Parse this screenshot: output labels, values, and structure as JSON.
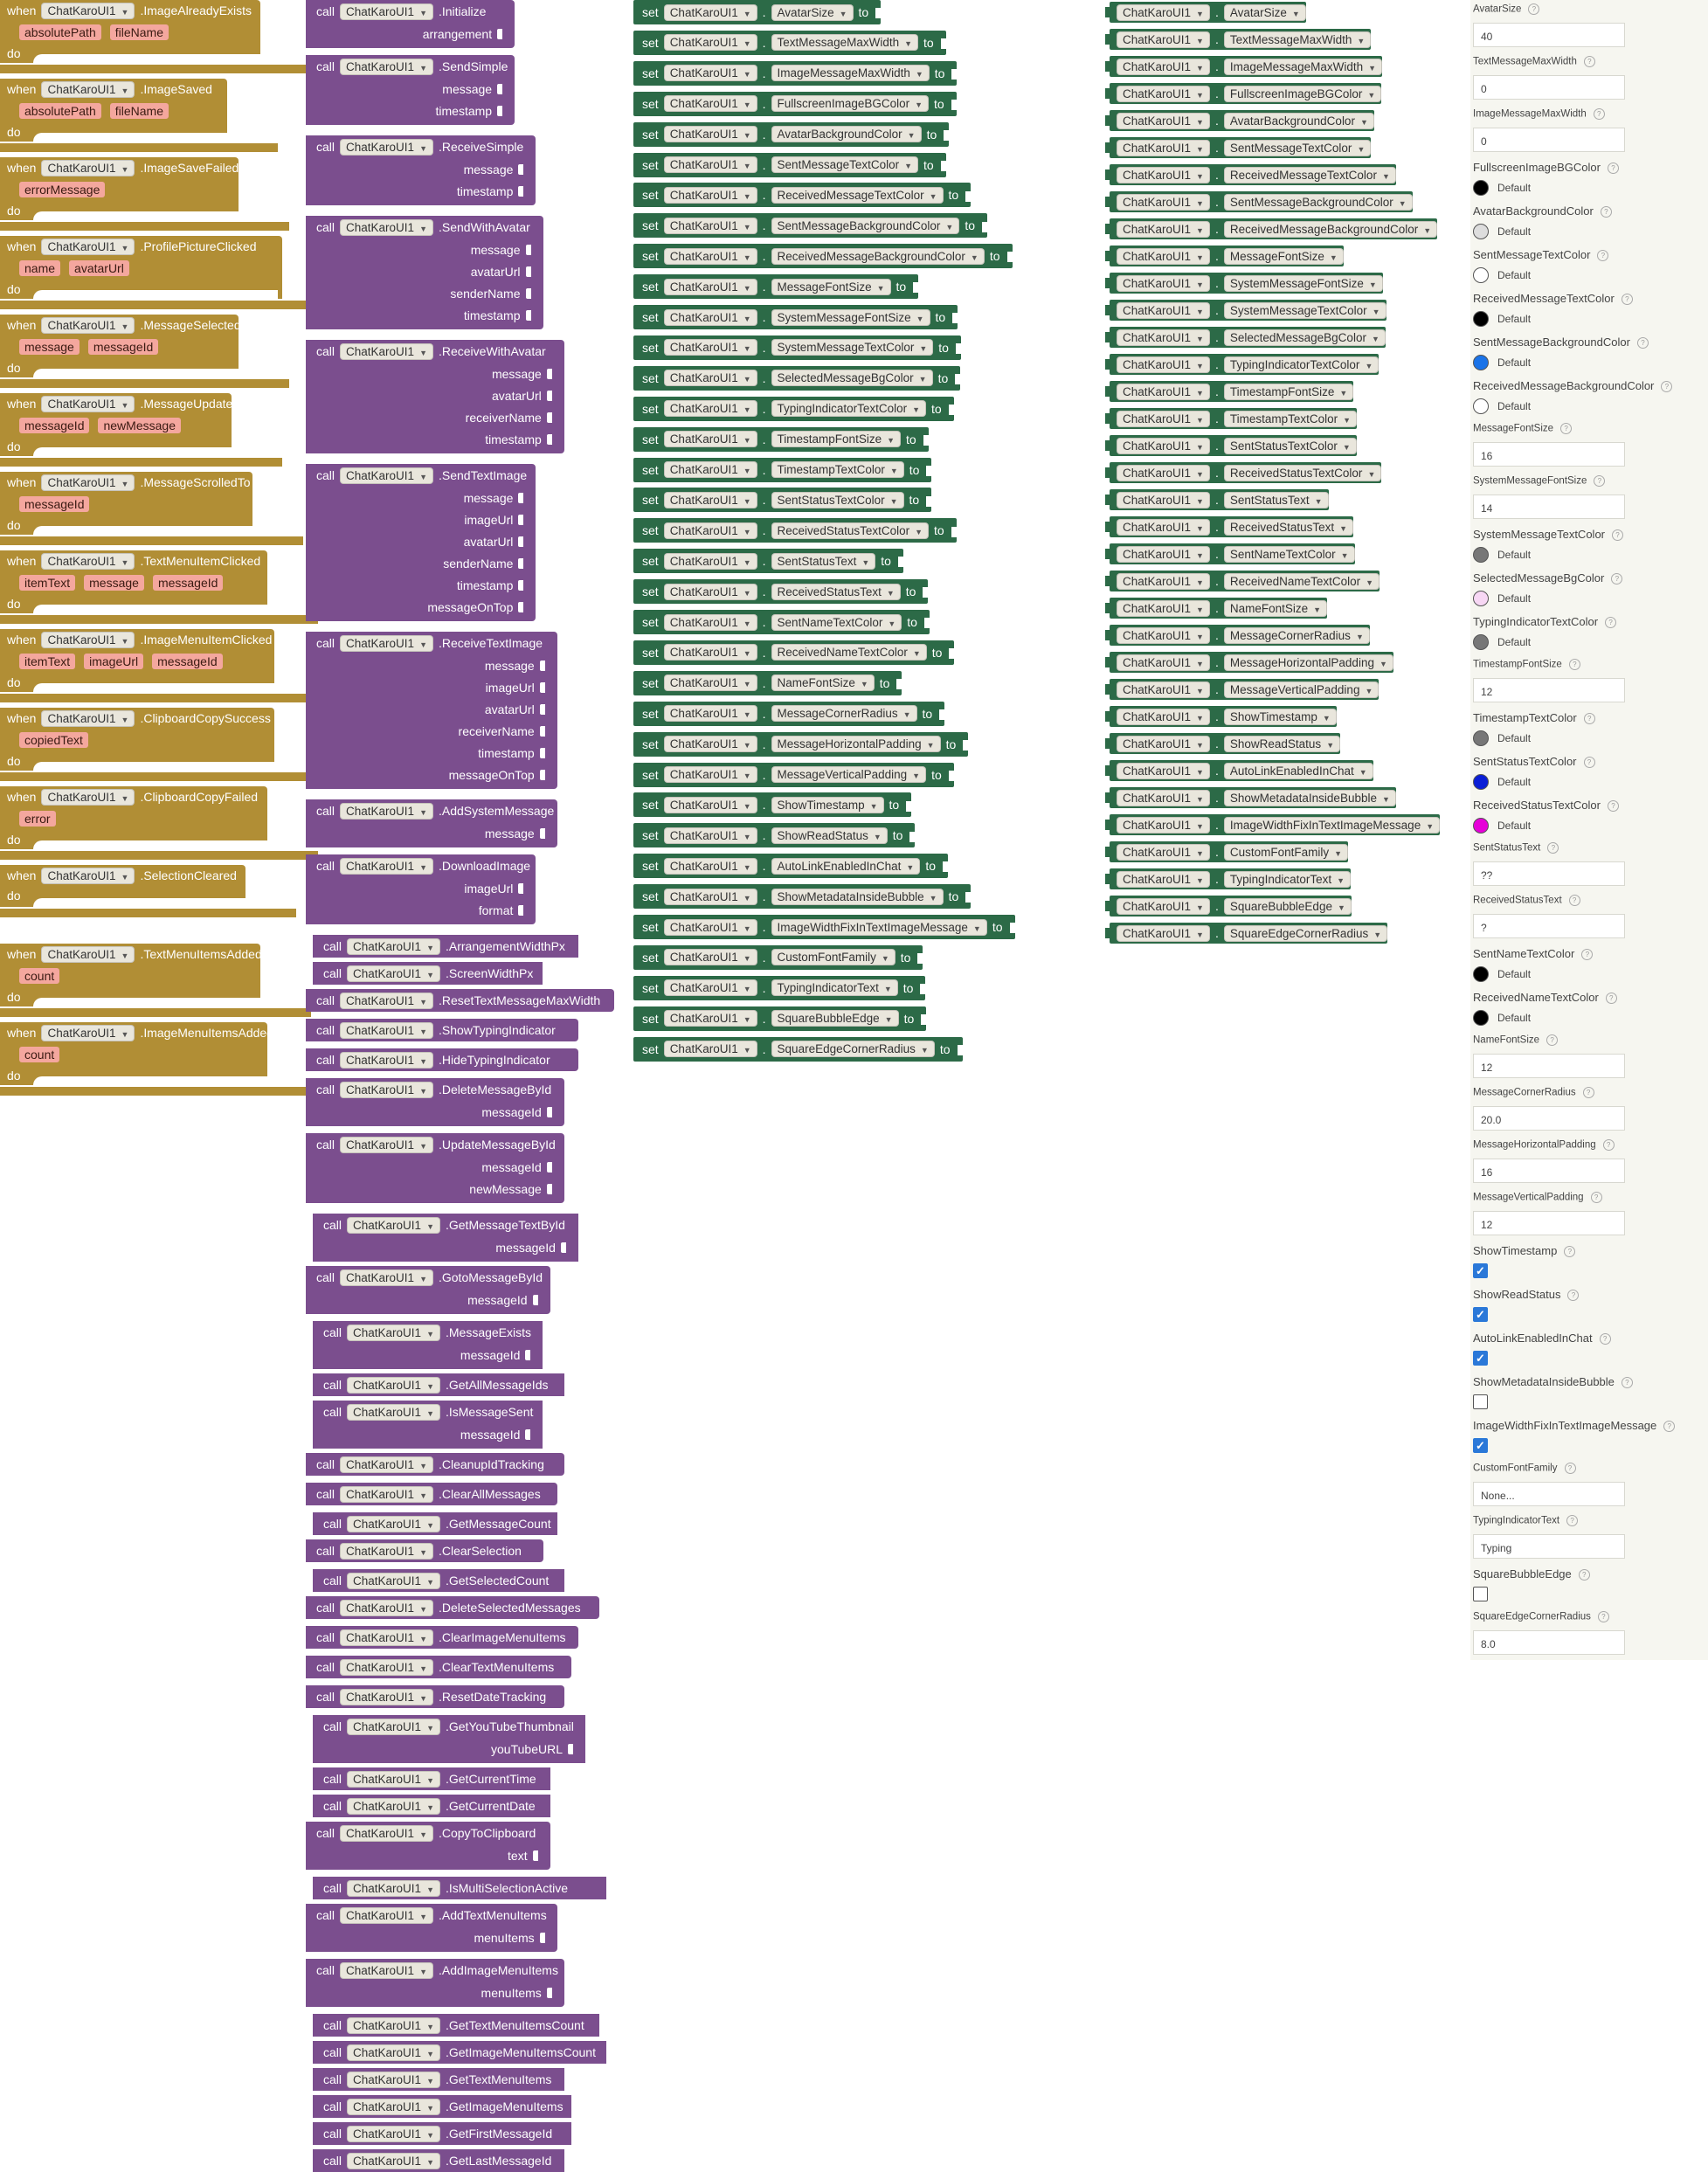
{
  "component": "ChatKaroUI1",
  "kw": {
    "when": "when",
    "do": "do",
    "call": "call",
    "set": "set",
    "to": "to"
  },
  "events": [
    {
      "name": ".ImageAlreadyExists",
      "params": [
        "absolutePath",
        "fileName"
      ]
    },
    {
      "name": ".ImageSaved",
      "params": [
        "absolutePath",
        "fileName"
      ]
    },
    {
      "name": ".ImageSaveFailed",
      "params": [
        "errorMessage"
      ]
    },
    {
      "name": ".ProfilePictureClicked",
      "params": [
        "name",
        "avatarUrl"
      ]
    },
    {
      "name": ".MessageSelected",
      "params": [
        "message",
        "messageId"
      ]
    },
    {
      "name": ".MessageUpdated",
      "params": [
        "messageId",
        "newMessage"
      ]
    },
    {
      "name": ".MessageScrolledTo",
      "params": [
        "messageId"
      ]
    },
    {
      "name": ".TextMenuItemClicked",
      "params": [
        "itemText",
        "message",
        "messageId"
      ]
    },
    {
      "name": ".ImageMenuItemClicked",
      "params": [
        "itemText",
        "imageUrl",
        "messageId"
      ]
    },
    {
      "name": ".ClipboardCopySuccess",
      "params": [
        "copiedText"
      ]
    },
    {
      "name": ".ClipboardCopyFailed",
      "params": [
        "error"
      ]
    },
    {
      "name": ".SelectionCleared",
      "params": []
    },
    {
      "name": ".TextMenuItemsAdded",
      "params": [
        "count"
      ]
    },
    {
      "name": ".ImageMenuItemsAdded",
      "params": [
        "count"
      ]
    }
  ],
  "methods": [
    {
      "name": ".Initialize",
      "args": [
        "arrangement"
      ]
    },
    {
      "name": ".SendSimple",
      "args": [
        "message",
        "timestamp"
      ]
    },
    {
      "name": ".ReceiveSimple",
      "args": [
        "message",
        "timestamp"
      ]
    },
    {
      "name": ".SendWithAvatar",
      "args": [
        "message",
        "avatarUrl",
        "senderName",
        "timestamp"
      ]
    },
    {
      "name": ".ReceiveWithAvatar",
      "args": [
        "message",
        "avatarUrl",
        "receiverName",
        "timestamp"
      ]
    },
    {
      "name": ".SendTextImage",
      "args": [
        "message",
        "imageUrl",
        "avatarUrl",
        "senderName",
        "timestamp",
        "messageOnTop"
      ]
    },
    {
      "name": ".ReceiveTextImage",
      "args": [
        "message",
        "imageUrl",
        "avatarUrl",
        "receiverName",
        "timestamp",
        "messageOnTop"
      ]
    },
    {
      "name": ".AddSystemMessage",
      "args": [
        "message"
      ]
    },
    {
      "name": ".DownloadImage",
      "args": [
        "imageUrl",
        "format"
      ]
    },
    {
      "name": ".ArrangementWidthPx",
      "args": [],
      "stub": true
    },
    {
      "name": ".ScreenWidthPx",
      "args": [],
      "stub": true
    },
    {
      "name": ".ResetTextMessageMaxWidth",
      "args": []
    },
    {
      "name": ".ShowTypingIndicator",
      "args": []
    },
    {
      "name": ".HideTypingIndicator",
      "args": []
    },
    {
      "name": ".DeleteMessageById",
      "args": [
        "messageId"
      ]
    },
    {
      "name": ".UpdateMessageById",
      "args": [
        "messageId",
        "newMessage"
      ]
    },
    {
      "name": ".GetMessageTextById",
      "args": [
        "messageId"
      ],
      "stub": true
    },
    {
      "name": ".GotoMessageById",
      "args": [
        "messageId"
      ]
    },
    {
      "name": ".MessageExists",
      "args": [
        "messageId"
      ],
      "stub": true
    },
    {
      "name": ".GetAllMessageIds",
      "args": [],
      "stub": true
    },
    {
      "name": ".IsMessageSent",
      "args": [
        "messageId"
      ],
      "stub": true
    },
    {
      "name": ".CleanupIdTracking",
      "args": []
    },
    {
      "name": ".ClearAllMessages",
      "args": []
    },
    {
      "name": ".GetMessageCount",
      "args": [],
      "stub": true
    },
    {
      "name": ".ClearSelection",
      "args": []
    },
    {
      "name": ".GetSelectedCount",
      "args": [],
      "stub": true
    },
    {
      "name": ".DeleteSelectedMessages",
      "args": []
    },
    {
      "name": ".ClearImageMenuItems",
      "args": []
    },
    {
      "name": ".ClearTextMenuItems",
      "args": []
    },
    {
      "name": ".ResetDateTracking",
      "args": []
    },
    {
      "name": ".GetYouTubeThumbnail",
      "args": [
        "youTubeURL"
      ],
      "stub": true
    },
    {
      "name": ".GetCurrentTime",
      "args": [],
      "stub": true
    },
    {
      "name": ".GetCurrentDate",
      "args": [],
      "stub": true
    },
    {
      "name": ".CopyToClipboard",
      "args": [
        "text"
      ]
    },
    {
      "name": ".IsMultiSelectionActive",
      "args": [],
      "stub": true
    },
    {
      "name": ".AddTextMenuItems",
      "args": [
        "menuItems"
      ]
    },
    {
      "name": ".AddImageMenuItems",
      "args": [
        "menuItems"
      ]
    },
    {
      "name": ".GetTextMenuItemsCount",
      "args": [],
      "stub": true
    },
    {
      "name": ".GetImageMenuItemsCount",
      "args": [],
      "stub": true
    },
    {
      "name": ".GetTextMenuItems",
      "args": [],
      "stub": true
    },
    {
      "name": ".GetImageMenuItems",
      "args": [],
      "stub": true
    },
    {
      "name": ".GetFirstMessageId",
      "args": [],
      "stub": true
    },
    {
      "name": ".GetLastMessageId",
      "args": [],
      "stub": true
    }
  ],
  "setters": [
    "AvatarSize",
    "TextMessageMaxWidth",
    "ImageMessageMaxWidth",
    "FullscreenImageBGColor",
    "AvatarBackgroundColor",
    "SentMessageTextColor",
    "ReceivedMessageTextColor",
    "SentMessageBackgroundColor",
    "ReceivedMessageBackgroundColor",
    "MessageFontSize",
    "SystemMessageFontSize",
    "SystemMessageTextColor",
    "SelectedMessageBgColor",
    "TypingIndicatorTextColor",
    "TimestampFontSize",
    "TimestampTextColor",
    "SentStatusTextColor",
    "ReceivedStatusTextColor",
    "SentStatusText",
    "ReceivedStatusText",
    "SentNameTextColor",
    "ReceivedNameTextColor",
    "NameFontSize",
    "MessageCornerRadius",
    "MessageHorizontalPadding",
    "MessageVerticalPadding",
    "ShowTimestamp",
    "ShowReadStatus",
    "AutoLinkEnabledInChat",
    "ShowMetadataInsideBubble",
    "ImageWidthFixInTextImageMessage",
    "CustomFontFamily",
    "TypingIndicatorText",
    "SquareBubbleEdge",
    "SquareEdgeCornerRadius"
  ],
  "getters": [
    "AvatarSize",
    "TextMessageMaxWidth",
    "ImageMessageMaxWidth",
    "FullscreenImageBGColor",
    "AvatarBackgroundColor",
    "SentMessageTextColor",
    "ReceivedMessageTextColor",
    "SentMessageBackgroundColor",
    "ReceivedMessageBackgroundColor",
    "MessageFontSize",
    "SystemMessageFontSize",
    "SystemMessageTextColor",
    "SelectedMessageBgColor",
    "TypingIndicatorTextColor",
    "TimestampFontSize",
    "TimestampTextColor",
    "SentStatusTextColor",
    "ReceivedStatusTextColor",
    "SentStatusText",
    "ReceivedStatusText",
    "SentNameTextColor",
    "ReceivedNameTextColor",
    "NameFontSize",
    "MessageCornerRadius",
    "MessageHorizontalPadding",
    "MessageVerticalPadding",
    "ShowTimestamp",
    "ShowReadStatus",
    "AutoLinkEnabledInChat",
    "ShowMetadataInsideBubble",
    "ImageWidthFixInTextImageMessage",
    "CustomFontFamily",
    "TypingIndicatorText",
    "SquareBubbleEdge",
    "SquareEdgeCornerRadius"
  ],
  "properties": [
    {
      "label": "AvatarSize",
      "type": "text",
      "value": "40"
    },
    {
      "label": "TextMessageMaxWidth",
      "type": "text",
      "value": "0"
    },
    {
      "label": "ImageMessageMaxWidth",
      "type": "text",
      "value": "0"
    },
    {
      "label": "FullscreenImageBGColor",
      "type": "color",
      "value": "Default",
      "color": "#000000"
    },
    {
      "label": "AvatarBackgroundColor",
      "type": "color",
      "value": "Default",
      "color": "#dddddd"
    },
    {
      "label": "SentMessageTextColor",
      "type": "color",
      "value": "Default",
      "color": "#ffffff"
    },
    {
      "label": "ReceivedMessageTextColor",
      "type": "color",
      "value": "Default",
      "color": "#000000"
    },
    {
      "label": "SentMessageBackgroundColor",
      "type": "color",
      "value": "Default",
      "color": "#1a73e8"
    },
    {
      "label": "ReceivedMessageBackgroundColor",
      "type": "color",
      "value": "Default",
      "color": "#ffffff"
    },
    {
      "label": "MessageFontSize",
      "type": "text",
      "value": "16"
    },
    {
      "label": "SystemMessageFontSize",
      "type": "text",
      "value": "14"
    },
    {
      "label": "SystemMessageTextColor",
      "type": "color",
      "value": "Default",
      "color": "#777777"
    },
    {
      "label": "SelectedMessageBgColor",
      "type": "color",
      "value": "Default",
      "color": "#f7d7f4"
    },
    {
      "label": "TypingIndicatorTextColor",
      "type": "color",
      "value": "Default",
      "color": "#777777"
    },
    {
      "label": "TimestampFontSize",
      "type": "text",
      "value": "12"
    },
    {
      "label": "TimestampTextColor",
      "type": "color",
      "value": "Default",
      "color": "#777777"
    },
    {
      "label": "SentStatusTextColor",
      "type": "color",
      "value": "Default",
      "color": "#0a1ed6"
    },
    {
      "label": "ReceivedStatusTextColor",
      "type": "color",
      "value": "Default",
      "color": "#e600d8"
    },
    {
      "label": "SentStatusText",
      "type": "text",
      "value": "??"
    },
    {
      "label": "ReceivedStatusText",
      "type": "text",
      "value": "?"
    },
    {
      "label": "SentNameTextColor",
      "type": "color",
      "value": "Default",
      "color": "#000000"
    },
    {
      "label": "ReceivedNameTextColor",
      "type": "color",
      "value": "Default",
      "color": "#000000"
    },
    {
      "label": "NameFontSize",
      "type": "text",
      "value": "12"
    },
    {
      "label": "MessageCornerRadius",
      "type": "text",
      "value": "20.0"
    },
    {
      "label": "MessageHorizontalPadding",
      "type": "text",
      "value": "16"
    },
    {
      "label": "MessageVerticalPadding",
      "type": "text",
      "value": "12"
    },
    {
      "label": "ShowTimestamp",
      "type": "check",
      "checked": true
    },
    {
      "label": "ShowReadStatus",
      "type": "check",
      "checked": true
    },
    {
      "label": "AutoLinkEnabledInChat",
      "type": "check",
      "checked": true
    },
    {
      "label": "ShowMetadataInsideBubble",
      "type": "check",
      "checked": false
    },
    {
      "label": "ImageWidthFixInTextImageMessage",
      "type": "check",
      "checked": true
    },
    {
      "label": "CustomFontFamily",
      "type": "text",
      "value": "None..."
    },
    {
      "label": "TypingIndicatorText",
      "type": "text",
      "value": "Typing"
    },
    {
      "label": "SquareBubbleEdge",
      "type": "check",
      "checked": false
    },
    {
      "label": "SquareEdgeCornerRadius",
      "type": "text",
      "value": "8.0"
    }
  ],
  "icons": {
    "dropdown": "caret-down-icon",
    "help": "question-circle-icon",
    "check": "checkmark-icon"
  }
}
